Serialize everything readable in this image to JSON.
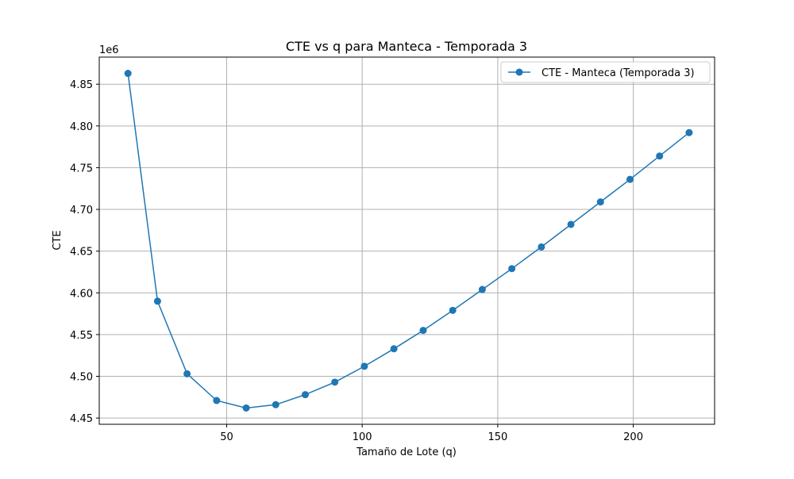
{
  "chart_data": {
    "type": "line",
    "title": "CTE vs q para Manteca - Temporada 3",
    "xlabel": "Tamaño de Lote (q)",
    "ylabel": "CTE",
    "offset_label": "1e6",
    "x_ticks": [
      "50",
      "100",
      "150",
      "200"
    ],
    "y_ticks": [
      "4.45",
      "4.50",
      "4.55",
      "4.60",
      "4.65",
      "4.70",
      "4.75",
      "4.80",
      "4.85"
    ],
    "xlim": [
      3,
      230
    ],
    "ylim": [
      4.4425,
      4.8825
    ],
    "y_scale": "×1e6",
    "grid": true,
    "legend_position": "top-right",
    "series": [
      {
        "name": "CTE - Manteca (Temporada 3)",
        "color": "#1f77b4",
        "marker": "circle",
        "x": [
          13.6,
          24.5,
          35.4,
          46.3,
          57.2,
          68.1,
          79.0,
          89.9,
          100.8,
          111.7,
          122.5,
          133.4,
          144.3,
          155.2,
          166.1,
          177.0,
          187.9,
          198.8,
          209.7,
          220.6
        ],
        "y": [
          4.863,
          4.59,
          4.503,
          4.471,
          4.462,
          4.466,
          4.478,
          4.493,
          4.512,
          4.533,
          4.555,
          4.579,
          4.604,
          4.629,
          4.655,
          4.682,
          4.709,
          4.736,
          4.764,
          4.792
        ]
      }
    ]
  }
}
